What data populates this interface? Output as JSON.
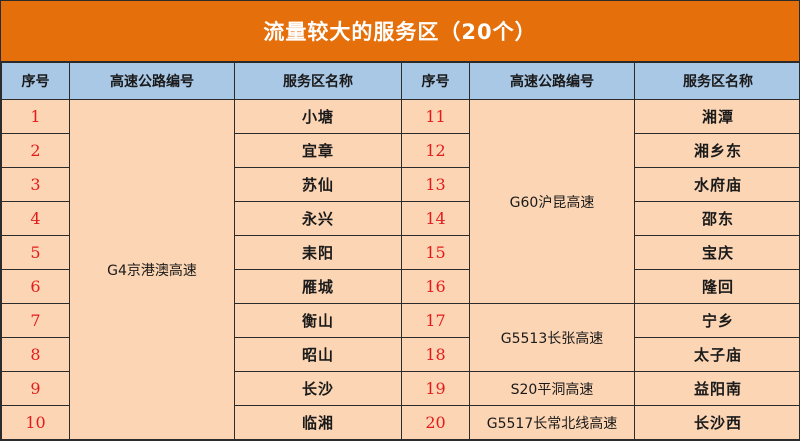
{
  "title": "流量较大的服务区（20个）",
  "headers": [
    "序号",
    "高速公路编号",
    "服务区名称",
    "序号",
    "高速公路编号",
    "服务区名称"
  ],
  "roads": {
    "g4": "G4京港澳高速",
    "g60": "G60沪昆高速",
    "g5513": "G5513长张高速",
    "s20": "S20平洞高速",
    "g5517": "G5517长常北线高速"
  },
  "rows": [
    {
      "left_no": "1",
      "left_name": "小塘",
      "right_no": "11",
      "right_name": "湘潭"
    },
    {
      "left_no": "2",
      "left_name": "宜章",
      "right_no": "12",
      "right_name": "湘乡东"
    },
    {
      "left_no": "3",
      "left_name": "苏仙",
      "right_no": "13",
      "right_name": "水府庙"
    },
    {
      "left_no": "4",
      "left_name": "永兴",
      "right_no": "14",
      "right_name": "邵东"
    },
    {
      "left_no": "5",
      "left_name": "耒阳",
      "right_no": "15",
      "right_name": "宝庆"
    },
    {
      "left_no": "6",
      "left_name": "雁城",
      "right_no": "16",
      "right_name": "隆回"
    },
    {
      "left_no": "7",
      "left_name": "衡山",
      "right_no": "17",
      "right_name": "宁乡"
    },
    {
      "left_no": "8",
      "left_name": "昭山",
      "right_no": "18",
      "right_name": "太子庙"
    },
    {
      "left_no": "9",
      "left_name": "长沙",
      "right_no": "19",
      "right_name": "益阳南"
    },
    {
      "left_no": "10",
      "left_name": "临湘",
      "right_no": "20",
      "right_name": "长沙西"
    }
  ],
  "colors": {
    "title_bg": "#e56f0b",
    "header_bg": "#a9c8e6",
    "cell_bg": "#fcd5b4",
    "index_text": "#e31b1b"
  }
}
